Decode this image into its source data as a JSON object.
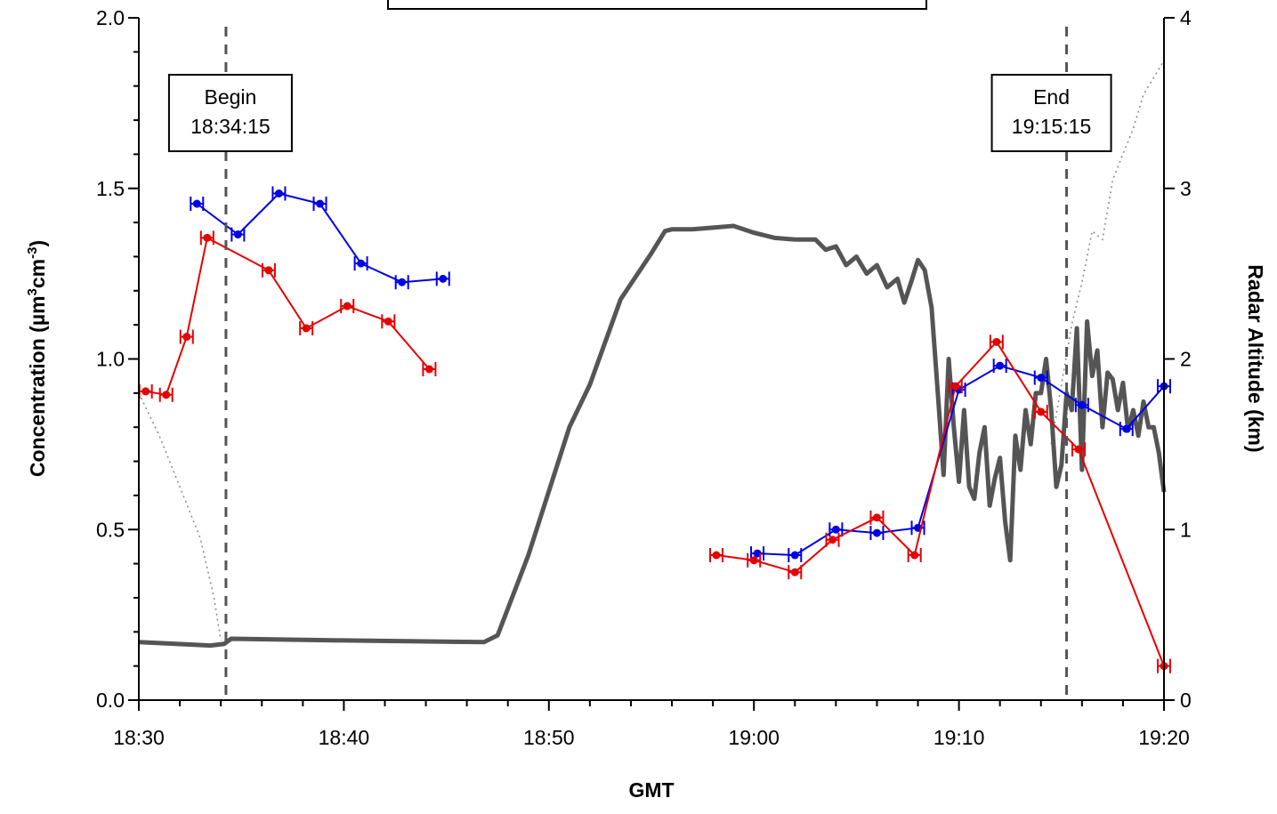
{
  "chart_data": {
    "type": "line",
    "title": "",
    "xlabel": "GMT",
    "ylabel_left": "Concentration  (µm³cm⁻³)",
    "ylabel_left_parts": {
      "main": "Concentration  (µm",
      "sup1": "3",
      "mid": "cm",
      "sup2": "-3",
      "end": ")"
    },
    "ylabel_right": "Radar Altitude  (km)",
    "x_ticks": [
      "18:30",
      "18:40",
      "18:50",
      "19:00",
      "19:10",
      "19:20"
    ],
    "x_range_minutes": [
      0,
      50
    ],
    "x_origin_label": "18:30",
    "y_left_ticks": [
      "0.0",
      "0.5",
      "1.0",
      "1.5",
      "2.0"
    ],
    "y_left_range": [
      0,
      2
    ],
    "y_right_ticks": [
      "0",
      "1",
      "2",
      "3",
      "4"
    ],
    "y_right_range": [
      0,
      4
    ],
    "grid": false,
    "legend": "none",
    "annotations": [
      {
        "line1": "Begin",
        "line2": "18:34:15",
        "time": "18:34:15"
      },
      {
        "line1": "End",
        "line2": "19:15:15",
        "time": "19:15:15"
      }
    ],
    "series": [
      {
        "color": "#0000e6",
        "axis": "left",
        "marker": "circle",
        "time": [
          "18:32:50",
          "18:34:50",
          "18:36:50",
          "18:38:50",
          "18:40:50",
          "18:42:50",
          "18:44:50",
          "19:00:10",
          "19:02:00",
          "19:04:00",
          "19:06:00",
          "19:08:00",
          "19:10:00",
          "19:12:00",
          "19:14:00",
          "19:16:00",
          "19:18:10",
          "19:20:00"
        ],
        "values": [
          1.455,
          1.365,
          1.485,
          1.455,
          1.28,
          1.225,
          1.235,
          0.43,
          0.425,
          0.5,
          0.49,
          0.505,
          0.91,
          0.98,
          0.945,
          0.865,
          0.795,
          0.92
        ],
        "segments": [
          [
            0,
            6
          ],
          [
            7,
            17
          ]
        ]
      },
      {
        "color": "#e60000",
        "axis": "left",
        "marker": "circle",
        "time": [
          "18:30:20",
          "18:31:20",
          "18:32:20",
          "18:33:20",
          "18:36:20",
          "18:38:10",
          "18:40:10",
          "18:42:10",
          "18:44:10",
          "18:58:10",
          "19:00:00",
          "19:02:00",
          "19:03:50",
          "19:06:00",
          "19:07:50",
          "19:09:50",
          "19:11:50",
          "19:14:00",
          "19:15:50",
          "19:20:00"
        ],
        "values": [
          0.905,
          0.895,
          1.065,
          1.355,
          1.26,
          1.09,
          1.155,
          1.11,
          0.97,
          0.425,
          0.41,
          0.375,
          0.47,
          0.535,
          0.425,
          0.92,
          1.05,
          0.845,
          0.735,
          0.1
        ],
        "segments": [
          [
            0,
            8
          ],
          [
            9,
            19
          ]
        ]
      },
      {
        "color": "#555555",
        "axis": "right",
        "marker": "none",
        "time": [
          "18:30:00",
          "18:33:30",
          "18:34:10",
          "18:34:30",
          "18:40:00",
          "18:46:50",
          "18:47:30",
          "18:49:00",
          "18:51:00",
          "18:52:00",
          "18:53:30",
          "18:55:00",
          "18:55:40",
          "18:56:00",
          "18:57:00",
          "18:58:00",
          "18:59:00",
          "19:00:00",
          "19:01:00",
          "19:02:00",
          "19:03:00",
          "19:03:30",
          "19:04:00",
          "19:04:30",
          "19:05:00",
          "19:05:30",
          "19:06:00",
          "19:06:30",
          "19:07:00",
          "19:07:20",
          "19:07:40",
          "19:08:00",
          "19:08:20",
          "19:08:40",
          "19:09:00",
          "19:09:15",
          "19:09:30",
          "19:09:45",
          "19:10:00",
          "19:10:15",
          "19:10:30",
          "19:10:45",
          "19:11:00",
          "19:11:15",
          "19:11:30",
          "19:11:45",
          "19:12:00",
          "19:12:15",
          "19:12:30",
          "19:12:45",
          "19:13:00",
          "19:13:15",
          "19:13:30",
          "19:13:45",
          "19:14:00",
          "19:14:15",
          "19:14:30",
          "19:14:45",
          "19:15:00",
          "19:15:15",
          "19:15:30",
          "19:15:45",
          "19:16:00",
          "19:16:15",
          "19:16:30",
          "19:16:45",
          "19:17:00",
          "19:17:15",
          "19:17:30",
          "19:17:45",
          "19:18:00",
          "19:18:15",
          "19:18:30",
          "19:18:45",
          "19:19:00",
          "19:19:15",
          "19:19:30",
          "19:19:45",
          "19:20:00"
        ],
        "values": [
          0.34,
          0.32,
          0.33,
          0.36,
          0.35,
          0.34,
          0.38,
          0.85,
          1.6,
          1.85,
          2.35,
          2.62,
          2.75,
          2.76,
          2.76,
          2.77,
          2.78,
          2.74,
          2.71,
          2.7,
          2.7,
          2.64,
          2.66,
          2.55,
          2.6,
          2.5,
          2.55,
          2.42,
          2.47,
          2.33,
          2.45,
          2.58,
          2.52,
          2.3,
          1.75,
          1.32,
          2.0,
          1.6,
          1.28,
          1.7,
          1.25,
          1.18,
          1.45,
          1.6,
          1.14,
          1.3,
          1.42,
          1.05,
          0.82,
          1.55,
          1.35,
          1.7,
          1.5,
          1.8,
          1.8,
          2.0,
          1.7,
          1.25,
          1.38,
          1.8,
          1.7,
          2.18,
          1.35,
          2.22,
          1.9,
          2.05,
          1.6,
          1.92,
          1.88,
          1.7,
          1.86,
          1.58,
          1.7,
          1.55,
          1.75,
          1.6,
          1.6,
          1.45,
          1.22
        ]
      },
      {
        "color": "#888888",
        "axis": "right",
        "marker": "dotted",
        "time": [
          "18:30:00",
          "18:31:00",
          "18:32:00",
          "18:33:00",
          "18:33:40",
          "18:34:00",
          "19:14:30",
          "19:15:00",
          "19:15:30",
          "19:16:00",
          "19:16:30",
          "19:17:00",
          "19:17:30",
          "19:18:00",
          "19:18:30",
          "19:19:00",
          "19:19:30",
          "19:20:00"
        ],
        "values": [
          1.8,
          1.55,
          1.25,
          0.95,
          0.6,
          0.35,
          1.5,
          1.85,
          2.2,
          2.45,
          2.75,
          2.7,
          3.05,
          3.2,
          3.35,
          3.55,
          3.65,
          3.75
        ]
      }
    ]
  }
}
